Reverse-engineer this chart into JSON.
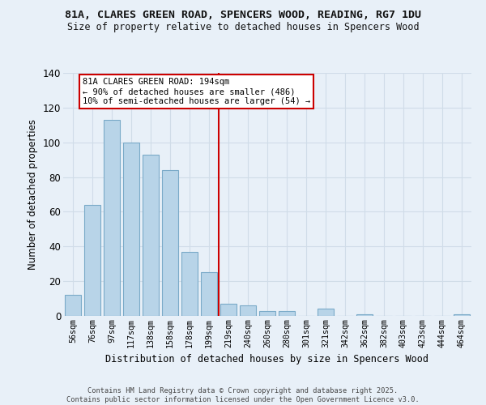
{
  "title": "81A, CLARES GREEN ROAD, SPENCERS WOOD, READING, RG7 1DU",
  "subtitle": "Size of property relative to detached houses in Spencers Wood",
  "xlabel": "Distribution of detached houses by size in Spencers Wood",
  "ylabel": "Number of detached properties",
  "bar_labels": [
    "56sqm",
    "76sqm",
    "97sqm",
    "117sqm",
    "138sqm",
    "158sqm",
    "178sqm",
    "199sqm",
    "219sqm",
    "240sqm",
    "260sqm",
    "280sqm",
    "301sqm",
    "321sqm",
    "342sqm",
    "362sqm",
    "382sqm",
    "403sqm",
    "423sqm",
    "444sqm",
    "464sqm"
  ],
  "bar_values": [
    12,
    64,
    113,
    100,
    93,
    84,
    37,
    25,
    7,
    6,
    3,
    3,
    0,
    4,
    0,
    1,
    0,
    0,
    0,
    0,
    1
  ],
  "bar_color": "#b8d4e8",
  "bar_edge_color": "#7aaac8",
  "vline_x": 7.5,
  "vline_color": "#cc0000",
  "ylim": [
    0,
    140
  ],
  "yticks": [
    0,
    20,
    40,
    60,
    80,
    100,
    120,
    140
  ],
  "annotation_title": "81A CLARES GREEN ROAD: 194sqm",
  "annotation_line1": "← 90% of detached houses are smaller (486)",
  "annotation_line2": "10% of semi-detached houses are larger (54) →",
  "annotation_box_color": "#ffffff",
  "annotation_box_edge": "#cc0000",
  "background_color": "#e8f0f8",
  "grid_color": "#d0dce8",
  "footer_line1": "Contains HM Land Registry data © Crown copyright and database right 2025.",
  "footer_line2": "Contains public sector information licensed under the Open Government Licence v3.0."
}
